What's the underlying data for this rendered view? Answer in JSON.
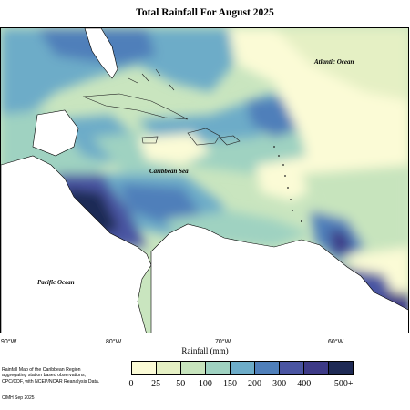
{
  "title": "Total Rainfall For August 2025",
  "map": {
    "ocean_labels": {
      "atlantic": "Atlantic Ocean",
      "caribbean": "Caribbean Sea",
      "pacific": "Pacific Ocean"
    },
    "longitude_labels": [
      "90°W",
      "80°W",
      "70°W",
      "60°W"
    ]
  },
  "legend": {
    "xlabel": "Rainfall (mm)",
    "ticks": [
      "0",
      "25",
      "50",
      "100",
      "150",
      "200",
      "300",
      "400",
      "500+"
    ],
    "colors": [
      "#fbfbd6",
      "#e5f0c4",
      "#c7e4bd",
      "#9fd2c1",
      "#6dacc8",
      "#4f7fba",
      "#4a55a2",
      "#3d3a87",
      "#1e2a55"
    ]
  },
  "description_lines": [
    "Rainfall Map of the Caribbean Region",
    "aggregating station based observations,",
    "CPC/CDF, with NCEP/NCAR Reanalysis Data."
  ],
  "credit": "CIMH Sep 2025"
}
